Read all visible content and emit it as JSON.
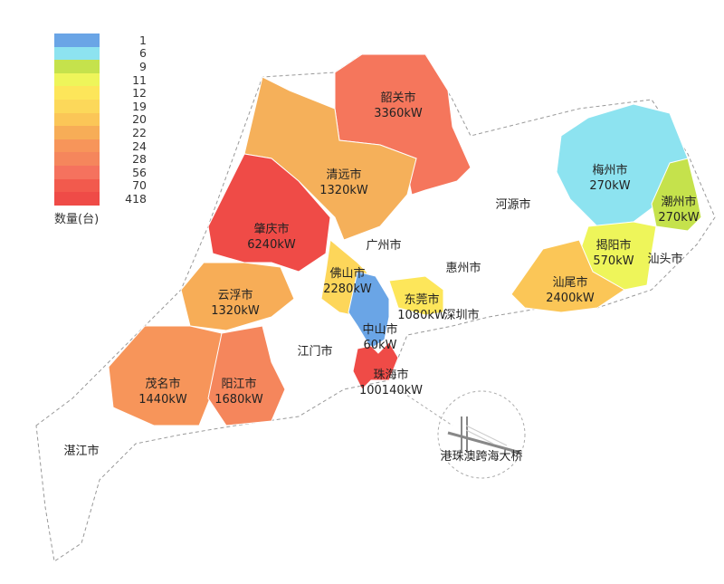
{
  "legend": {
    "title": "数量(台)",
    "items": [
      {
        "label": "1",
        "color": "#6aa5e6"
      },
      {
        "label": "6",
        "color": "#8de3f0"
      },
      {
        "label": "9",
        "color": "#c5e24c"
      },
      {
        "label": "11",
        "color": "#eef55a"
      },
      {
        "label": "12",
        "color": "#fde65a"
      },
      {
        "label": "19",
        "color": "#fcd85a"
      },
      {
        "label": "20",
        "color": "#fbc657"
      },
      {
        "label": "22",
        "color": "#f7ad57"
      },
      {
        "label": "24",
        "color": "#f7955a"
      },
      {
        "label": "28",
        "color": "#f5865c"
      },
      {
        "label": "56",
        "color": "#f5725e"
      },
      {
        "label": "70",
        "color": "#f25a4d"
      },
      {
        "label": "418",
        "color": "#ef4b47"
      }
    ]
  },
  "regions": [
    {
      "name": "韶关市",
      "value": "3360kW",
      "color": "#f5765c"
    },
    {
      "name": "清远市",
      "value": "1320kW",
      "color": "#f5b05a"
    },
    {
      "name": "肇庆市",
      "value": "6240kW",
      "color": "#ef4b47"
    },
    {
      "name": "云浮市",
      "value": "1320kW",
      "color": "#f7ad57"
    },
    {
      "name": "茂名市",
      "value": "1440kW",
      "color": "#f7955a"
    },
    {
      "name": "阳江市",
      "value": "1680kW",
      "color": "#f5865c"
    },
    {
      "name": "佛山市",
      "value": "2280kW",
      "color": "#fdd65a"
    },
    {
      "name": "中山市",
      "value": "60kW",
      "color": "#6aa5e6"
    },
    {
      "name": "珠海市",
      "value": "100140kW",
      "color": "#ef4b47"
    },
    {
      "name": "东莞市",
      "value": "1080kW",
      "color": "#fde65a"
    },
    {
      "name": "梅州市",
      "value": "270kW",
      "color": "#8de3f0"
    },
    {
      "name": "潮州市",
      "value": "270kW",
      "color": "#c5e24c"
    },
    {
      "name": "揭阳市",
      "value": "570kW",
      "color": "#eef55a"
    },
    {
      "name": "汕尾市",
      "value": "2400kW",
      "color": "#fbc657"
    }
  ],
  "unfilled_regions": [
    "广州市",
    "惠州市",
    "河源市",
    "江门市",
    "湛江市",
    "深圳市",
    "汕头市"
  ],
  "bridge_label": "港珠澳跨海大桥"
}
